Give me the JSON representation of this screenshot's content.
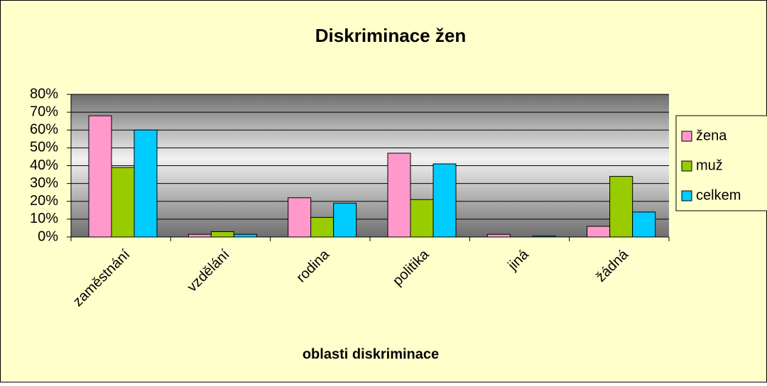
{
  "chart_data": {
    "type": "bar",
    "title": "Diskriminace žen",
    "x_label": "oblasti diskriminace",
    "categories": [
      "zaměstnání",
      "vzdělání",
      "rodina",
      "politika",
      "jiná",
      "žádná"
    ],
    "series": [
      {
        "name": "žena",
        "color": "#ff99cc",
        "values": [
          68,
          1.5,
          22,
          47,
          1.5,
          6
        ]
      },
      {
        "name": "muž",
        "color": "#99cc00",
        "values": [
          39,
          3,
          11,
          21,
          0,
          34
        ]
      },
      {
        "name": "celkem",
        "color": "#00ccff",
        "values": [
          60,
          1.5,
          19,
          41,
          0.5,
          14
        ]
      }
    ],
    "ylim": [
      0,
      80
    ],
    "yticks": [
      {
        "value": 0,
        "label": "0%"
      },
      {
        "value": 10,
        "label": "10%"
      },
      {
        "value": 20,
        "label": "20%"
      },
      {
        "value": 30,
        "label": "30%"
      },
      {
        "value": 40,
        "label": "40%"
      },
      {
        "value": 50,
        "label": "50%"
      },
      {
        "value": 60,
        "label": "60%"
      },
      {
        "value": 70,
        "label": "70%"
      },
      {
        "value": 80,
        "label": "80%"
      }
    ],
    "grid": true,
    "legend": "right"
  }
}
